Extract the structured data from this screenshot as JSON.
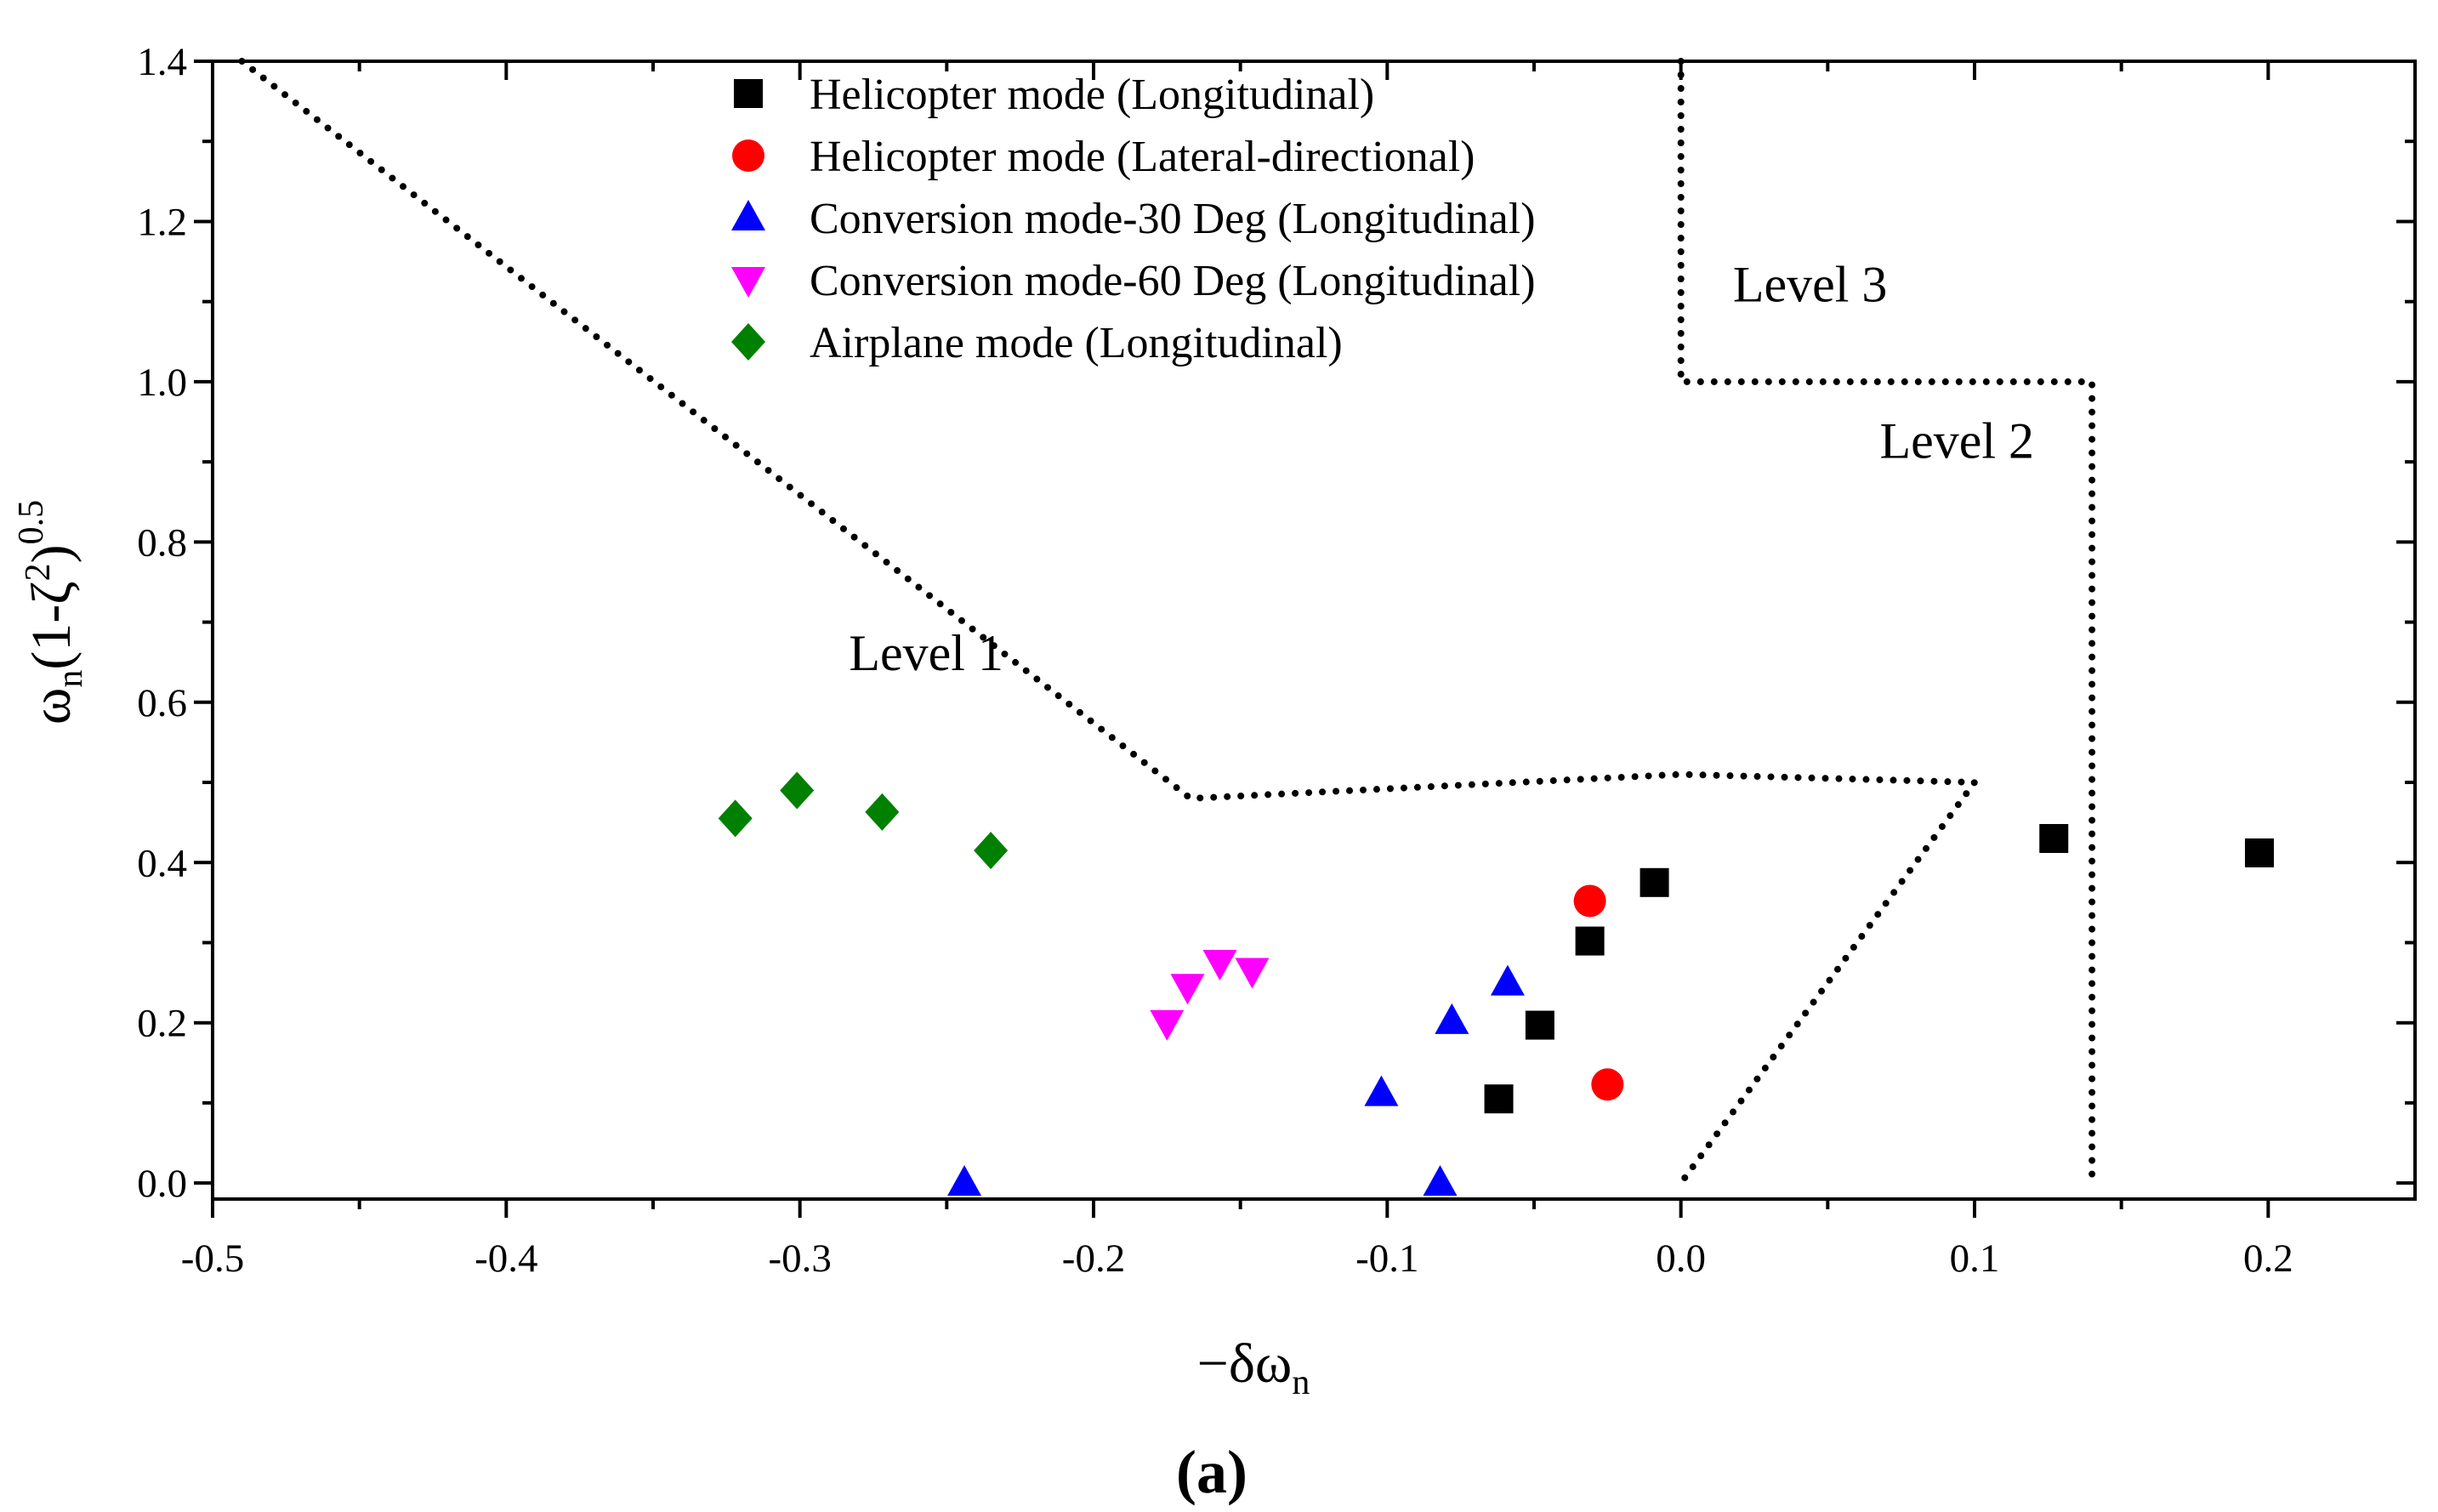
{
  "chart_data": {
    "type": "scatter",
    "title": "",
    "xlabel": {
      "prefix": "−δω",
      "subscript": "n"
    },
    "ylabel": {
      "omega": "ω",
      "subscript": "n",
      "body": "(1-ζ",
      "square": "2",
      "close": ")",
      "power": "0.5"
    },
    "xlim": [
      -0.5,
      0.25
    ],
    "ylim": [
      -0.02,
      1.4
    ],
    "x_ticks": [
      -0.5,
      -0.4,
      -0.3,
      -0.2,
      -0.1,
      0.0,
      0.1,
      0.2
    ],
    "x_tick_labels": [
      "-0.5",
      "-0.4",
      "-0.3",
      "-0.2",
      "-0.1",
      "0.0",
      "0.1",
      "0.2"
    ],
    "y_ticks": [
      0.0,
      0.2,
      0.4,
      0.6,
      0.8,
      1.0,
      1.2,
      1.4
    ],
    "y_tick_labels": [
      "0.0",
      "0.2",
      "0.4",
      "0.6",
      "0.8",
      "1.0",
      "1.2",
      "1.4"
    ],
    "legend_position": "top-center",
    "series": [
      {
        "name": "Helicopter mode (Longitudinal)",
        "marker": "square",
        "color": "#000000",
        "points": [
          [
            -0.062,
            0.105
          ],
          [
            -0.048,
            0.197
          ],
          [
            -0.031,
            0.302
          ],
          [
            -0.009,
            0.375
          ],
          [
            0.127,
            0.43
          ],
          [
            0.197,
            0.412
          ]
        ]
      },
      {
        "name": "Helicopter mode (Lateral-directional)",
        "marker": "circle",
        "color": "#ff0000",
        "points": [
          [
            -0.031,
            0.352
          ],
          [
            -0.025,
            0.123
          ]
        ]
      },
      {
        "name": "Conversion mode-30 Deg (Longitudinal)",
        "marker": "triangle-up",
        "color": "#0000ff",
        "points": [
          [
            -0.244,
            0.0
          ],
          [
            -0.102,
            0.112
          ],
          [
            -0.082,
            0.0
          ],
          [
            -0.078,
            0.202
          ],
          [
            -0.059,
            0.25
          ]
        ]
      },
      {
        "name": "Conversion mode-60 Deg (Longitudinal)",
        "marker": "triangle-down",
        "color": "#ff00ff",
        "points": [
          [
            -0.175,
            0.2
          ],
          [
            -0.168,
            0.245
          ],
          [
            -0.157,
            0.275
          ],
          [
            -0.146,
            0.265
          ]
        ]
      },
      {
        "name": "Airplane mode (Longitudinal)",
        "marker": "diamond",
        "color": "#008000",
        "points": [
          [
            -0.322,
            0.455
          ],
          [
            -0.301,
            0.49
          ],
          [
            -0.272,
            0.463
          ],
          [
            -0.235,
            0.415
          ]
        ]
      }
    ],
    "boundaries": [
      {
        "name": "level-1-boundary",
        "points": [
          [
            -0.49,
            1.4
          ],
          [
            -0.167,
            0.48
          ],
          [
            0.0,
            0.51
          ],
          [
            0.1,
            0.5
          ],
          [
            0.0,
            0.0
          ]
        ]
      },
      {
        "name": "level-2-boundary",
        "points": [
          [
            0.0,
            1.4
          ],
          [
            0.0,
            1.0
          ],
          [
            0.14,
            1.0
          ],
          [
            0.14,
            0.0
          ]
        ]
      }
    ],
    "annotations": [
      {
        "name": "level-1-label",
        "text": "Level 1",
        "x": -0.257,
        "y": 0.64
      },
      {
        "name": "level-3-label",
        "text": "Level 3",
        "x": 0.044,
        "y": 1.1
      },
      {
        "name": "level-2-label",
        "text": "Level 2",
        "x": 0.094,
        "y": 0.905
      }
    ],
    "caption": "(a)"
  }
}
